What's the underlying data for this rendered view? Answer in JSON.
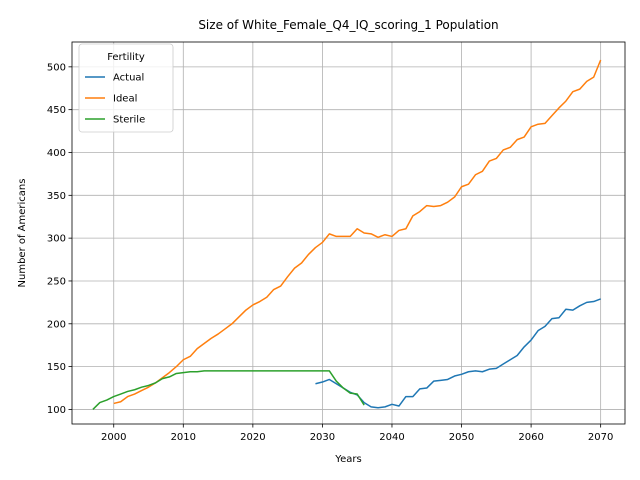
{
  "chart_data": {
    "type": "line",
    "title": "Size of White_Female_Q4_IQ_scoring_1 Population",
    "xlabel": "Years",
    "ylabel": "Number of Americans",
    "xlim": [
      1994,
      2073.5
    ],
    "ylim": [
      83,
      529
    ],
    "xticks": [
      2000,
      2010,
      2020,
      2030,
      2040,
      2050,
      2060,
      2070
    ],
    "yticks": [
      100,
      150,
      200,
      250,
      300,
      350,
      400,
      450,
      500
    ],
    "grid": true,
    "legend": {
      "title": "Fertility",
      "position": "top-left"
    },
    "series": [
      {
        "name": "Actual",
        "color": "#1f77b4",
        "points": [
          [
            2029,
            130
          ],
          [
            2030,
            132
          ],
          [
            2031,
            135
          ],
          [
            2032,
            130
          ],
          [
            2033,
            125
          ],
          [
            2034,
            120
          ],
          [
            2035,
            117
          ],
          [
            2036,
            108
          ],
          [
            2037,
            103
          ],
          [
            2038,
            102
          ],
          [
            2039,
            103
          ],
          [
            2040,
            106
          ],
          [
            2041,
            104
          ],
          [
            2042,
            115
          ],
          [
            2043,
            115
          ],
          [
            2044,
            124
          ],
          [
            2045,
            125
          ],
          [
            2046,
            133
          ],
          [
            2047,
            134
          ],
          [
            2048,
            135
          ],
          [
            2049,
            139
          ],
          [
            2050,
            141
          ],
          [
            2051,
            144
          ],
          [
            2052,
            145
          ],
          [
            2053,
            144
          ],
          [
            2054,
            147
          ],
          [
            2055,
            148
          ],
          [
            2056,
            153
          ],
          [
            2057,
            158
          ],
          [
            2058,
            163
          ],
          [
            2059,
            173
          ],
          [
            2060,
            181
          ],
          [
            2061,
            192
          ],
          [
            2062,
            197
          ],
          [
            2063,
            206
          ],
          [
            2064,
            207
          ],
          [
            2065,
            217
          ],
          [
            2066,
            216
          ],
          [
            2067,
            221
          ],
          [
            2068,
            225
          ],
          [
            2069,
            226
          ],
          [
            2070,
            229
          ]
        ]
      },
      {
        "name": "Ideal",
        "color": "#ff7f0e",
        "points": [
          [
            2000,
            107
          ],
          [
            2001,
            109
          ],
          [
            2002,
            115
          ],
          [
            2003,
            118
          ],
          [
            2004,
            122
          ],
          [
            2005,
            126
          ],
          [
            2006,
            131
          ],
          [
            2007,
            137
          ],
          [
            2008,
            143
          ],
          [
            2009,
            150
          ],
          [
            2010,
            158
          ],
          [
            2011,
            162
          ],
          [
            2012,
            171
          ],
          [
            2013,
            177
          ],
          [
            2014,
            183
          ],
          [
            2015,
            188
          ],
          [
            2016,
            194
          ],
          [
            2017,
            200
          ],
          [
            2018,
            208
          ],
          [
            2019,
            216
          ],
          [
            2020,
            222
          ],
          [
            2021,
            226
          ],
          [
            2022,
            231
          ],
          [
            2023,
            240
          ],
          [
            2024,
            244
          ],
          [
            2025,
            255
          ],
          [
            2026,
            265
          ],
          [
            2027,
            271
          ],
          [
            2028,
            281
          ],
          [
            2029,
            289
          ],
          [
            2030,
            295
          ],
          [
            2031,
            305
          ],
          [
            2032,
            302
          ],
          [
            2033,
            302
          ],
          [
            2034,
            302
          ],
          [
            2035,
            311
          ],
          [
            2036,
            306
          ],
          [
            2037,
            305
          ],
          [
            2038,
            301
          ],
          [
            2039,
            304
          ],
          [
            2040,
            302
          ],
          [
            2041,
            309
          ],
          [
            2042,
            311
          ],
          [
            2043,
            326
          ],
          [
            2044,
            331
          ],
          [
            2045,
            338
          ],
          [
            2046,
            337
          ],
          [
            2047,
            338
          ],
          [
            2048,
            342
          ],
          [
            2049,
            348
          ],
          [
            2050,
            360
          ],
          [
            2051,
            363
          ],
          [
            2052,
            374
          ],
          [
            2053,
            378
          ],
          [
            2054,
            390
          ],
          [
            2055,
            393
          ],
          [
            2056,
            403
          ],
          [
            2057,
            406
          ],
          [
            2058,
            415
          ],
          [
            2059,
            418
          ],
          [
            2060,
            430
          ],
          [
            2061,
            433
          ],
          [
            2062,
            434
          ],
          [
            2063,
            443
          ],
          [
            2064,
            452
          ],
          [
            2065,
            460
          ],
          [
            2066,
            471
          ],
          [
            2067,
            474
          ],
          [
            2068,
            483
          ],
          [
            2069,
            488
          ],
          [
            2070,
            508
          ]
        ]
      },
      {
        "name": "Sterile",
        "color": "#2ca02c",
        "points": [
          [
            1997,
            100
          ],
          [
            1998,
            108
          ],
          [
            1999,
            111
          ],
          [
            2000,
            115
          ],
          [
            2001,
            118
          ],
          [
            2002,
            121
          ],
          [
            2003,
            123
          ],
          [
            2004,
            126
          ],
          [
            2005,
            128
          ],
          [
            2006,
            131
          ],
          [
            2007,
            136
          ],
          [
            2008,
            138
          ],
          [
            2009,
            142
          ],
          [
            2010,
            143
          ],
          [
            2011,
            144
          ],
          [
            2012,
            144
          ],
          [
            2013,
            145
          ],
          [
            2014,
            145
          ],
          [
            2015,
            145
          ],
          [
            2016,
            145
          ],
          [
            2017,
            145
          ],
          [
            2018,
            145
          ],
          [
            2019,
            145
          ],
          [
            2020,
            145
          ],
          [
            2021,
            145
          ],
          [
            2022,
            145
          ],
          [
            2023,
            145
          ],
          [
            2024,
            145
          ],
          [
            2025,
            145
          ],
          [
            2026,
            145
          ],
          [
            2027,
            145
          ],
          [
            2028,
            145
          ],
          [
            2029,
            145
          ],
          [
            2030,
            145
          ],
          [
            2031,
            145
          ],
          [
            2032,
            133
          ],
          [
            2033,
            125
          ],
          [
            2034,
            119
          ],
          [
            2035,
            118
          ],
          [
            2036,
            105
          ]
        ]
      }
    ]
  }
}
